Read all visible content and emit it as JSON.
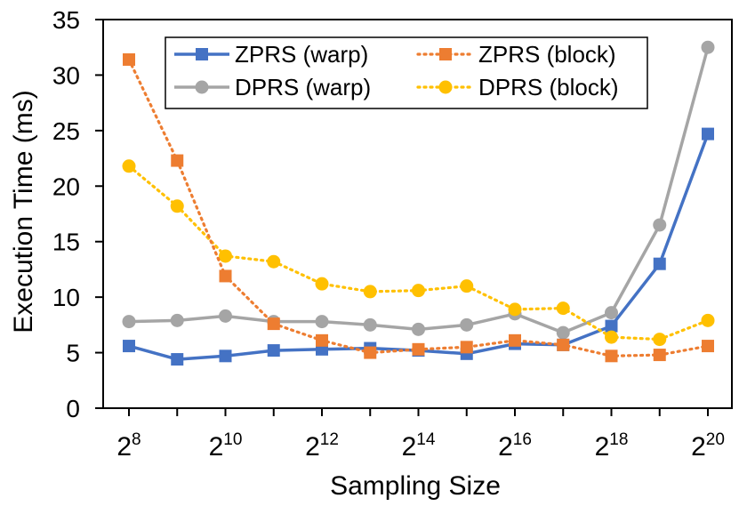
{
  "chart_data": {
    "type": "line",
    "title": "",
    "xlabel": "Sampling Size",
    "ylabel": "Execution Time (ms)",
    "x_tick_labels": [
      {
        "base": "2",
        "exp": "8"
      },
      {
        "base": "2",
        "exp": "10"
      },
      {
        "base": "2",
        "exp": "12"
      },
      {
        "base": "2",
        "exp": "14"
      },
      {
        "base": "2",
        "exp": "16"
      },
      {
        "base": "2",
        "exp": "18"
      },
      {
        "base": "2",
        "exp": "20"
      }
    ],
    "x_exponents": [
      8,
      9,
      10,
      11,
      12,
      13,
      14,
      15,
      16,
      17,
      18,
      19,
      20
    ],
    "xlim": [
      8,
      20
    ],
    "ylim": [
      0,
      35
    ],
    "y_ticks": [
      "0",
      "5",
      "10",
      "15",
      "20",
      "25",
      "30",
      "35"
    ],
    "grid": false,
    "legend_position": "top",
    "series": [
      {
        "name": "ZPRS (warp)",
        "color": "#4472C4",
        "style": "solid",
        "marker": "square",
        "values": [
          5.6,
          4.4,
          4.7,
          5.2,
          5.3,
          5.4,
          5.2,
          4.9,
          5.8,
          5.7,
          7.4,
          13.0,
          24.7
        ]
      },
      {
        "name": "ZPRS (block)",
        "color": "#ED7D31",
        "style": "dotted",
        "marker": "square",
        "values": [
          31.4,
          22.3,
          11.9,
          7.6,
          6.1,
          5.0,
          5.3,
          5.5,
          6.1,
          5.7,
          4.7,
          4.8,
          5.6
        ]
      },
      {
        "name": "DPRS (warp)",
        "color": "#A5A5A5",
        "style": "solid",
        "marker": "circle",
        "values": [
          7.8,
          7.9,
          8.3,
          7.8,
          7.8,
          7.5,
          7.1,
          7.5,
          8.5,
          6.8,
          8.6,
          16.5,
          32.5
        ]
      },
      {
        "name": "DPRS (block)",
        "color": "#FFC000",
        "style": "dotted",
        "marker": "circle",
        "values": [
          21.8,
          18.2,
          13.7,
          13.2,
          11.2,
          10.5,
          10.6,
          11.0,
          8.9,
          9.0,
          6.4,
          6.2,
          7.9
        ]
      }
    ]
  }
}
